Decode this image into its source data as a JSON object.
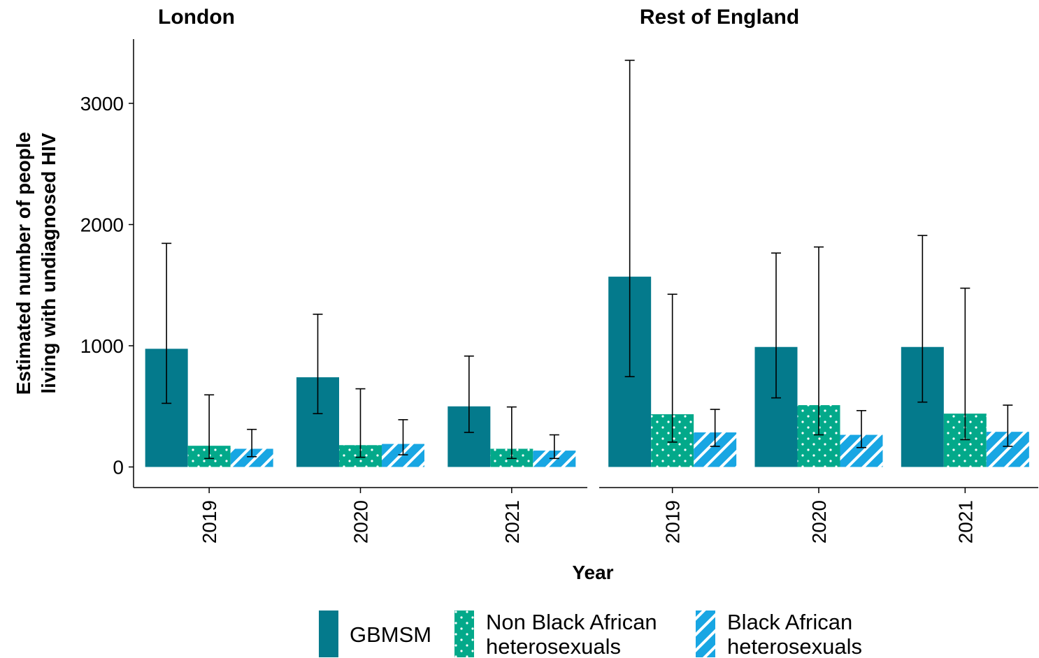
{
  "chart_data": {
    "type": "bar",
    "xlabel": "Year",
    "ylabel": "Estimated number of people living with undiagnosed HIV",
    "ylabel_lines": [
      "Estimated number of people",
      "living with undiagnosed HIV"
    ],
    "ylim": [
      -170,
      3530
    ],
    "yticks": [
      0,
      1000,
      2000,
      3000
    ],
    "yticks_labels": [
      "0",
      "1000",
      "2000",
      "3000"
    ],
    "categories": [
      "2019",
      "2020",
      "2021"
    ],
    "grid": false,
    "legend_position": "bottom",
    "series_meta": [
      {
        "name": "GBMSM",
        "label_lines": [
          "GBMSM"
        ],
        "color": "#047a8c",
        "pattern": "none"
      },
      {
        "name": "Non Black African heterosexuals",
        "label_lines": [
          "Non Black African",
          "heterosexuals"
        ],
        "color": "#03a98a",
        "pattern": "dots"
      },
      {
        "name": "Black African heterosexuals",
        "label_lines": [
          "Black African",
          "heterosexuals"
        ],
        "color": "#18a6e3",
        "pattern": "stripes"
      }
    ],
    "panels": [
      {
        "title": "London",
        "series": [
          {
            "name": "GBMSM",
            "values": [
              975,
              740,
              500
            ],
            "lower": [
              525,
              440,
              285
            ],
            "upper": [
              1845,
              1260,
              915
            ]
          },
          {
            "name": "Non Black African heterosexuals",
            "values": [
              175,
              180,
              150
            ],
            "lower": [
              70,
              80,
              70
            ],
            "upper": [
              595,
              645,
              495
            ]
          },
          {
            "name": "Black African heterosexuals",
            "values": [
              150,
              190,
              135
            ],
            "lower": [
              85,
              100,
              70
            ],
            "upper": [
              310,
              390,
              265
            ]
          }
        ]
      },
      {
        "title": "Rest of England",
        "series": [
          {
            "name": "GBMSM",
            "values": [
              1570,
              990,
              990
            ],
            "lower": [
              745,
              570,
              535
            ],
            "upper": [
              3355,
              1765,
              1910
            ]
          },
          {
            "name": "Non Black African heterosexuals",
            "values": [
              435,
              510,
              440
            ],
            "lower": [
              205,
              265,
              225
            ],
            "upper": [
              1425,
              1815,
              1475
            ]
          },
          {
            "name": "Black African heterosexuals",
            "values": [
              285,
              265,
              290
            ],
            "lower": [
              170,
              160,
              170
            ],
            "upper": [
              475,
              465,
              510
            ]
          }
        ]
      }
    ]
  }
}
